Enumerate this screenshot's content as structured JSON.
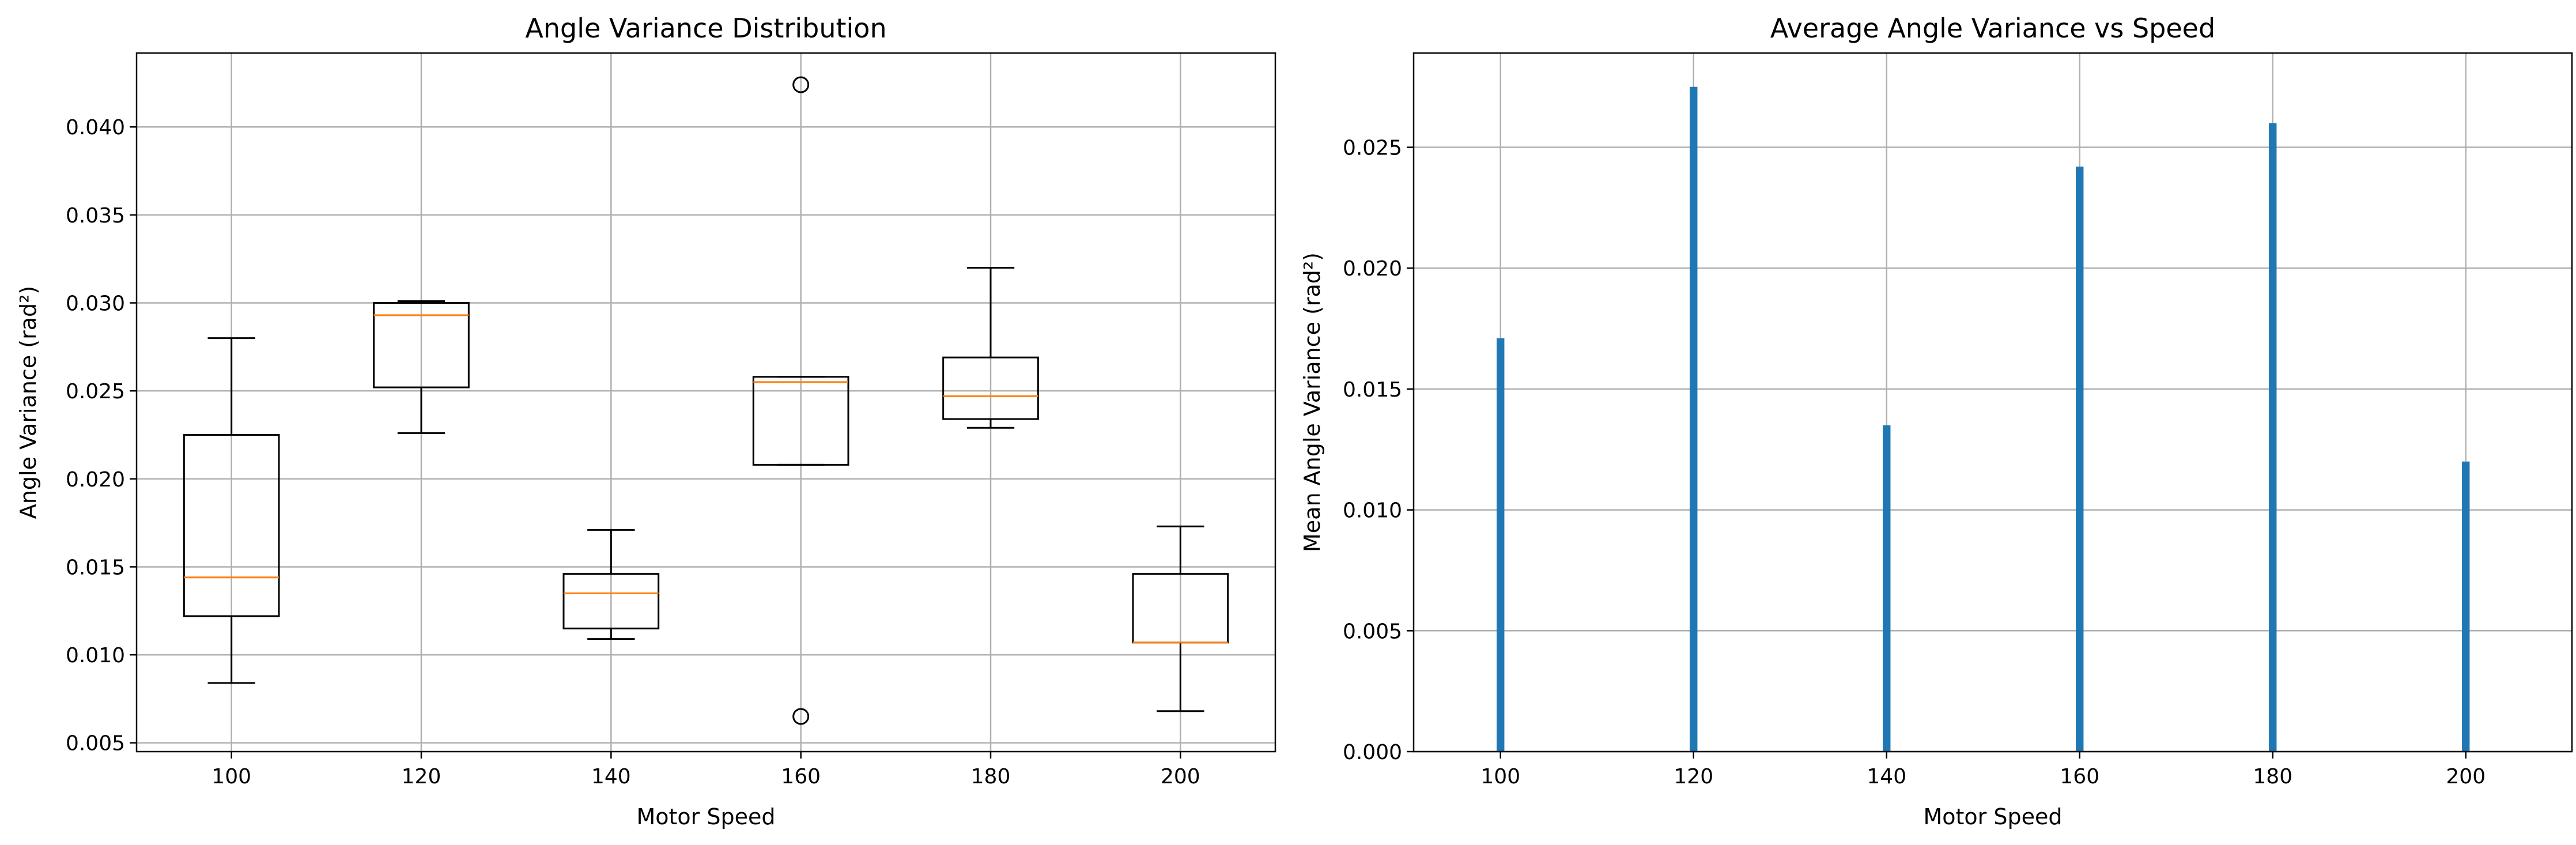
{
  "chart_data": [
    {
      "type": "box",
      "title": "Angle Variance Distribution",
      "xlabel": "Motor Speed",
      "ylabel": "Angle Variance (rad²)",
      "categories": [
        "100",
        "120",
        "140",
        "160",
        "180",
        "200"
      ],
      "ylim": [
        0.0045,
        0.0442
      ],
      "yticks": [
        "0.005",
        "0.010",
        "0.015",
        "0.020",
        "0.025",
        "0.030",
        "0.035",
        "0.040"
      ],
      "grid": true,
      "colors": {
        "box": "#000000",
        "median": "#ff7f0e",
        "grid": "#b0b0b0"
      },
      "boxes": [
        {
          "whisker_low": 0.0084,
          "q1": 0.0122,
          "median": 0.0144,
          "q3": 0.0225,
          "whisker_high": 0.028,
          "outliers": []
        },
        {
          "whisker_low": 0.0226,
          "q1": 0.0252,
          "median": 0.0293,
          "q3": 0.03,
          "whisker_high": 0.0301,
          "outliers": []
        },
        {
          "whisker_low": 0.0109,
          "q1": 0.0115,
          "median": 0.0135,
          "q3": 0.0146,
          "whisker_high": 0.0171,
          "outliers": []
        },
        {
          "whisker_low": 0.0208,
          "q1": 0.0208,
          "median": 0.0255,
          "q3": 0.0258,
          "whisker_high": 0.0258,
          "outliers": [
            0.0424,
            0.0065
          ]
        },
        {
          "whisker_low": 0.0229,
          "q1": 0.0234,
          "median": 0.0247,
          "q3": 0.0269,
          "whisker_high": 0.032,
          "outliers": []
        },
        {
          "whisker_low": 0.0068,
          "q1": 0.0107,
          "median": 0.0107,
          "q3": 0.0146,
          "whisker_high": 0.0173,
          "outliers": []
        }
      ]
    },
    {
      "type": "bar",
      "title": "Average Angle Variance vs Speed",
      "xlabel": "Motor Speed",
      "ylabel": "Mean Angle Variance (rad²)",
      "x": [
        100,
        120,
        140,
        160,
        180,
        200
      ],
      "values": [
        0.0171,
        0.0275,
        0.0135,
        0.0242,
        0.026,
        0.012
      ],
      "xticks": [
        "100",
        "120",
        "140",
        "160",
        "180",
        "200"
      ],
      "xlim": [
        91,
        211
      ],
      "ylim": [
        0,
        0.0289
      ],
      "yticks": [
        "0.000",
        "0.005",
        "0.010",
        "0.015",
        "0.020",
        "0.025"
      ],
      "bar_width": 0.8,
      "grid": true,
      "colors": {
        "bar": "#1f77b4",
        "grid": "#b0b0b0"
      }
    }
  ]
}
